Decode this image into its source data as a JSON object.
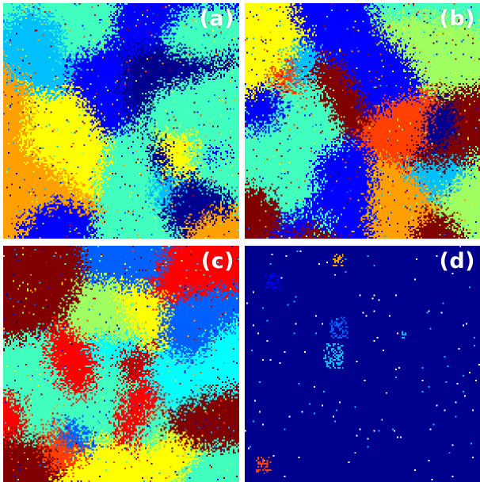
{
  "figure": {
    "background": "#ffffff",
    "colormap": "jet",
    "palette": [
      "#00008f",
      "#0000ff",
      "#0060ff",
      "#00c0ff",
      "#40ffbf",
      "#9fff60",
      "#ffff00",
      "#ffa000",
      "#ff4000",
      "#bf0000",
      "#800000"
    ]
  },
  "panels": [
    {
      "id": "a",
      "label": "(a)",
      "pattern": "multi-domain",
      "dominant_colors": [
        "#00008f",
        "#00c0ff",
        "#40ffbf",
        "#ffa000",
        "#ffff00",
        "#0000ff"
      ]
    },
    {
      "id": "b",
      "label": "(b)",
      "pattern": "multi-domain",
      "dominant_colors": [
        "#ffff00",
        "#00c0ff",
        "#40ffbf",
        "#0000ff",
        "#800000",
        "#ff4000"
      ]
    },
    {
      "id": "c",
      "label": "(c)",
      "pattern": "multi-domain",
      "dominant_colors": [
        "#ff0000",
        "#00ffff",
        "#40ffbf",
        "#0060ff",
        "#800000",
        "#ffff00"
      ]
    },
    {
      "id": "d",
      "label": "(d)",
      "pattern": "near-uniform",
      "dominant_colors": [
        "#00008f"
      ]
    }
  ]
}
